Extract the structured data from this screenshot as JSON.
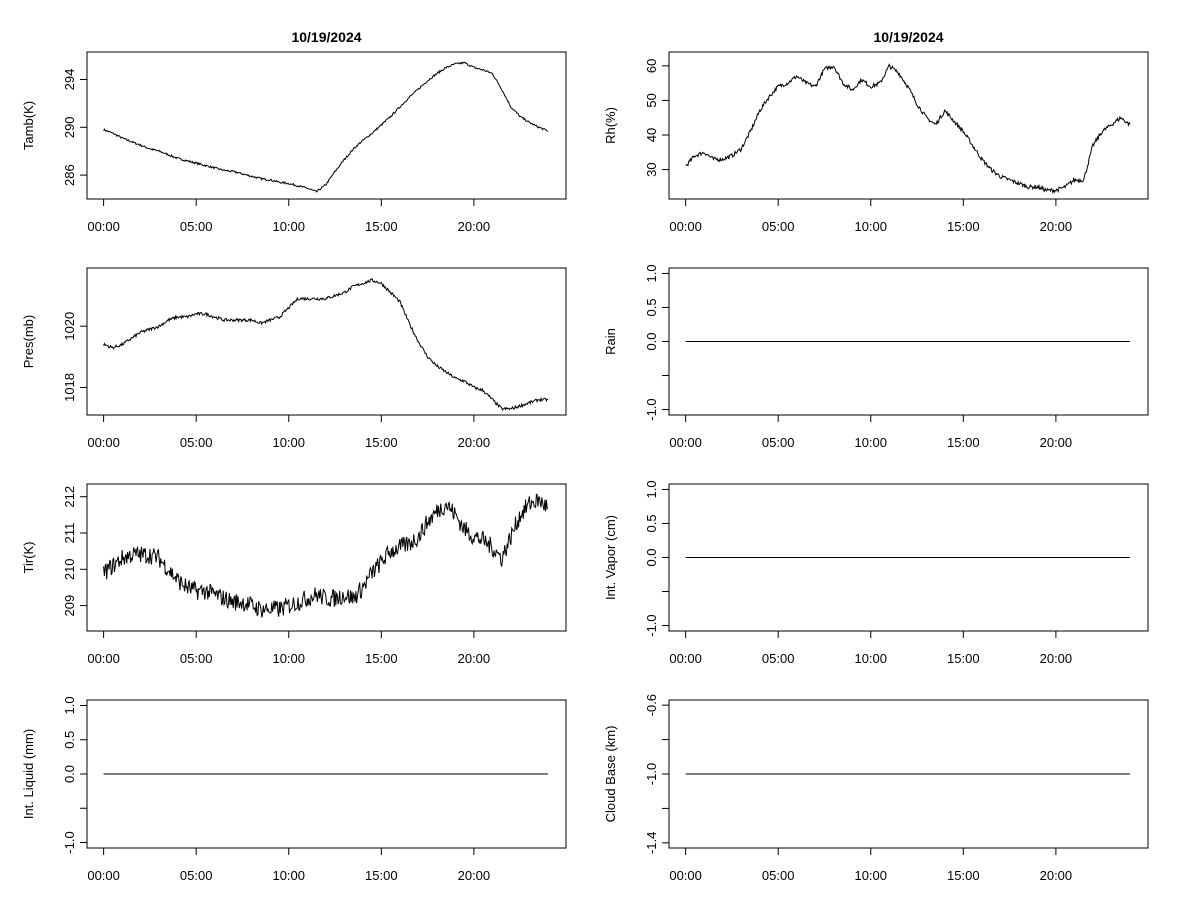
{
  "chart_data": [
    {
      "type": "line",
      "title": "10/19/2024",
      "ylabel": "Tamb(K)",
      "xlabel": "",
      "xlim": [
        0,
        24
      ],
      "ylim": [
        284.0,
        296.3
      ],
      "xticks": [
        0,
        5,
        10,
        15,
        20
      ],
      "xtick_labels": [
        "00:00",
        "05:00",
        "10:00",
        "15:00",
        "20:00"
      ],
      "yticks": [
        286,
        290,
        294
      ],
      "ytick_labels": [
        "286",
        "290",
        "294"
      ],
      "series": [
        {
          "x": [
            0,
            0.5,
            1,
            1.5,
            2,
            2.5,
            3,
            3.5,
            4,
            4.5,
            5,
            5.5,
            6,
            6.5,
            7,
            7.5,
            8,
            8.5,
            9,
            9.5,
            10,
            10.5,
            11,
            11.5,
            12,
            12.5,
            13,
            13.5,
            14,
            14.5,
            15,
            15.5,
            16,
            16.5,
            17,
            17.5,
            18,
            18.5,
            19,
            19.5,
            20,
            20.5,
            21,
            21.5,
            22,
            22.5,
            23,
            23.5,
            24
          ],
          "y": [
            289.8,
            289.5,
            289.1,
            288.8,
            288.5,
            288.2,
            288.0,
            287.7,
            287.4,
            287.2,
            287.0,
            286.8,
            286.6,
            286.4,
            286.3,
            286.1,
            285.9,
            285.7,
            285.6,
            285.4,
            285.3,
            285.1,
            284.9,
            284.6,
            285.2,
            286.3,
            287.3,
            288.2,
            288.9,
            289.5,
            290.2,
            290.9,
            291.7,
            292.5,
            293.2,
            293.9,
            294.5,
            295.0,
            295.3,
            295.4,
            295.0,
            294.8,
            294.5,
            293.2,
            291.7,
            290.9,
            290.4,
            290.0,
            289.7
          ]
        }
      ]
    },
    {
      "type": "line",
      "title": "10/19/2024",
      "ylabel": "Rh(%)",
      "xlabel": "",
      "xlim": [
        0,
        24
      ],
      "ylim": [
        21.5,
        64.0
      ],
      "xticks": [
        0,
        5,
        10,
        15,
        20
      ],
      "xtick_labels": [
        "00:00",
        "05:00",
        "10:00",
        "15:00",
        "20:00"
      ],
      "yticks": [
        30,
        40,
        50,
        60
      ],
      "ytick_labels": [
        "30",
        "40",
        "50",
        "60"
      ],
      "series": [
        {
          "x": [
            0,
            0.5,
            1,
            1.5,
            2,
            2.5,
            3,
            3.5,
            4,
            4.5,
            5,
            5.5,
            6,
            6.5,
            7,
            7.5,
            8,
            8.5,
            9,
            9.5,
            10,
            10.5,
            11,
            11.5,
            12,
            12.5,
            13,
            13.5,
            14,
            14.5,
            15,
            15.5,
            16,
            16.5,
            17,
            17.5,
            18,
            18.5,
            19,
            19.5,
            20,
            20.5,
            21,
            21.5,
            22,
            22.5,
            23,
            23.5,
            24
          ],
          "y": [
            31,
            34,
            35,
            33,
            33,
            34,
            36,
            41,
            47,
            51,
            54,
            55,
            57,
            55,
            54,
            59,
            60,
            55,
            53,
            56,
            54,
            55,
            60,
            58,
            54,
            49,
            45,
            43,
            47,
            44,
            41,
            37,
            33,
            30,
            28,
            27,
            26,
            25,
            25,
            24,
            24,
            25,
            27,
            27,
            37,
            41,
            43,
            45,
            43
          ]
        }
      ]
    },
    {
      "type": "line",
      "title": "",
      "ylabel": "Pres(mb)",
      "xlabel": "",
      "xlim": [
        0,
        24
      ],
      "ylim": [
        1017.1,
        1021.9
      ],
      "xticks": [
        0,
        5,
        10,
        15,
        20
      ],
      "xtick_labels": [
        "00:00",
        "05:00",
        "10:00",
        "15:00",
        "20:00"
      ],
      "yticks": [
        1018,
        1020
      ],
      "ytick_labels": [
        "1018",
        "1020"
      ],
      "series": [
        {
          "x": [
            0,
            0.5,
            1,
            1.5,
            2,
            2.5,
            3,
            3.5,
            4,
            4.5,
            5,
            5.5,
            6,
            6.5,
            7,
            7.5,
            8,
            8.5,
            9,
            9.5,
            10,
            10.5,
            11,
            11.5,
            12,
            12.5,
            13,
            13.5,
            14,
            14.5,
            15,
            15.5,
            16,
            16.5,
            17,
            17.5,
            18,
            18.5,
            19,
            19.5,
            20,
            20.5,
            21,
            21.5,
            22,
            22.5,
            23,
            23.5,
            24
          ],
          "y": [
            1019.4,
            1019.3,
            1019.4,
            1019.6,
            1019.8,
            1019.9,
            1020.0,
            1020.2,
            1020.3,
            1020.3,
            1020.4,
            1020.4,
            1020.3,
            1020.2,
            1020.2,
            1020.2,
            1020.2,
            1020.1,
            1020.2,
            1020.3,
            1020.6,
            1020.9,
            1020.9,
            1020.9,
            1020.9,
            1021.0,
            1021.1,
            1021.3,
            1021.4,
            1021.5,
            1021.4,
            1021.1,
            1020.8,
            1020.1,
            1019.5,
            1019.0,
            1018.7,
            1018.5,
            1018.3,
            1018.2,
            1018.0,
            1017.9,
            1017.6,
            1017.3,
            1017.3,
            1017.4,
            1017.5,
            1017.6,
            1017.6
          ]
        }
      ]
    },
    {
      "type": "line",
      "title": "",
      "ylabel": "Rain",
      "xlabel": "",
      "xlim": [
        0,
        24
      ],
      "ylim": [
        -1.08,
        1.08
      ],
      "xticks": [
        0,
        5,
        10,
        15,
        20
      ],
      "xtick_labels": [
        "00:00",
        "05:00",
        "10:00",
        "15:00",
        "20:00"
      ],
      "yticks": [
        -1.0,
        -0.5,
        0.0,
        0.5,
        1.0
      ],
      "ytick_labels": [
        "-1.0",
        "",
        "0.0",
        "0.5",
        "1.0"
      ],
      "series": [
        {
          "x": [
            0,
            24
          ],
          "y": [
            0.0,
            0.0
          ]
        }
      ]
    },
    {
      "type": "line",
      "title": "",
      "ylabel": "Tir(K)",
      "xlabel": "",
      "xlim": [
        0,
        24
      ],
      "ylim": [
        208.3,
        212.35
      ],
      "xticks": [
        0,
        5,
        10,
        15,
        20
      ],
      "xtick_labels": [
        "00:00",
        "05:00",
        "10:00",
        "15:00",
        "20:00"
      ],
      "yticks": [
        209,
        210,
        211,
        212
      ],
      "ytick_labels": [
        "209",
        "210",
        "211",
        "212"
      ],
      "series": [
        {
          "x": [
            0,
            0.5,
            1,
            1.5,
            2,
            2.5,
            3,
            3.5,
            4,
            4.5,
            5,
            5.5,
            6,
            6.5,
            7,
            7.5,
            8,
            8.5,
            9,
            9.5,
            10,
            10.5,
            11,
            11.5,
            12,
            12.5,
            13,
            13.5,
            14,
            14.5,
            15,
            15.5,
            16,
            16.5,
            17,
            17.5,
            18,
            18.5,
            19,
            19.5,
            20,
            20.5,
            21,
            21.5,
            22,
            22.5,
            23,
            23.5,
            24
          ],
          "y": [
            209.9,
            210.1,
            210.3,
            210.4,
            210.4,
            210.4,
            210.3,
            210.0,
            209.7,
            209.5,
            209.4,
            209.4,
            209.3,
            209.2,
            209.1,
            209.1,
            209.0,
            208.9,
            208.9,
            208.9,
            209.0,
            209.1,
            209.2,
            209.3,
            209.2,
            209.2,
            209.3,
            209.2,
            209.5,
            209.9,
            210.2,
            210.5,
            210.6,
            210.7,
            210.9,
            211.3,
            211.6,
            211.8,
            211.5,
            211.1,
            210.9,
            210.8,
            210.6,
            210.3,
            210.9,
            211.5,
            211.8,
            211.9,
            211.7
          ]
        }
      ]
    },
    {
      "type": "line",
      "title": "",
      "ylabel": "Int. Vapor (cm)",
      "xlabel": "",
      "xlim": [
        0,
        24
      ],
      "ylim": [
        -1.08,
        1.08
      ],
      "xticks": [
        0,
        5,
        10,
        15,
        20
      ],
      "xtick_labels": [
        "00:00",
        "05:00",
        "10:00",
        "15:00",
        "20:00"
      ],
      "yticks": [
        -1.0,
        -0.5,
        0.0,
        0.5,
        1.0
      ],
      "ytick_labels": [
        "-1.0",
        "",
        "0.0",
        "0.5",
        "1.0"
      ],
      "series": [
        {
          "x": [
            0,
            24
          ],
          "y": [
            0.0,
            0.0
          ]
        }
      ]
    },
    {
      "type": "line",
      "title": "",
      "ylabel": "Int. Liquid (mm)",
      "xlabel": "",
      "xlim": [
        0,
        24
      ],
      "ylim": [
        -1.08,
        1.08
      ],
      "xticks": [
        0,
        5,
        10,
        15,
        20
      ],
      "xtick_labels": [
        "00:00",
        "05:00",
        "10:00",
        "15:00",
        "20:00"
      ],
      "yticks": [
        -1.0,
        -0.5,
        0.0,
        0.5,
        1.0
      ],
      "ytick_labels": [
        "-1.0",
        "",
        "0.0",
        "0.5",
        "1.0"
      ],
      "series": [
        {
          "x": [
            0,
            24
          ],
          "y": [
            0.0,
            0.0
          ]
        }
      ]
    },
    {
      "type": "line",
      "title": "",
      "ylabel": "Cloud Base (km)",
      "xlabel": "",
      "xlim": [
        0,
        24
      ],
      "ylim": [
        -1.43,
        -0.57
      ],
      "xticks": [
        0,
        5,
        10,
        15,
        20
      ],
      "xtick_labels": [
        "00:00",
        "05:00",
        "10:00",
        "15:00",
        "20:00"
      ],
      "yticks": [
        -1.4,
        -1.2,
        -1.0,
        -0.8,
        -0.6
      ],
      "ytick_labels": [
        "-1.4",
        "",
        "-1.0",
        "",
        "-0.6"
      ],
      "series": [
        {
          "x": [
            0,
            24
          ],
          "y": [
            -1.0,
            -1.0
          ]
        }
      ]
    }
  ]
}
